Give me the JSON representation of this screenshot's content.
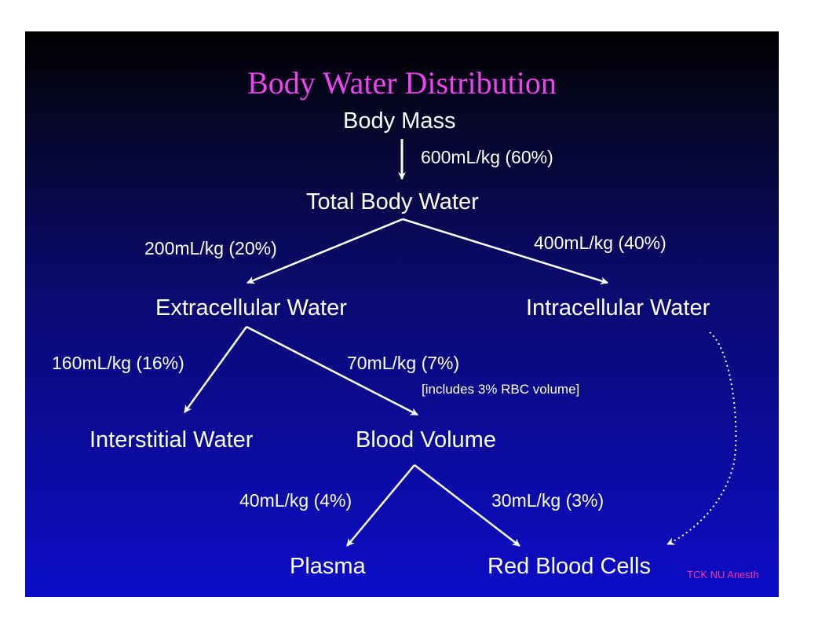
{
  "title": "Body Water Distribution",
  "nodes": {
    "body_mass": "Body Mass",
    "total_body_water": "Total Body Water",
    "extracellular_water": "Extracellular Water",
    "intracellular_water": "Intracellular Water",
    "interstitial_water": "Interstitial Water",
    "blood_volume": "Blood Volume",
    "plasma": "Plasma",
    "red_blood_cells": "Red Blood Cells"
  },
  "edges": {
    "body_to_tbw": "600mL/kg (60%)",
    "tbw_to_ecw": "200mL/kg (20%)",
    "tbw_to_icw": "400mL/kg (40%)",
    "ecw_to_interstitial": "160mL/kg (16%)",
    "ecw_to_blood": "70mL/kg (7%)",
    "ecw_to_blood_note": "[includes 3% RBC volume]",
    "blood_to_plasma": "40mL/kg (4%)",
    "blood_to_rbc": "30mL/kg (3%)"
  },
  "credit": "TCK NU Anesth",
  "colors": {
    "title": "#ee44ee",
    "credit": "#ff3399",
    "text": "#ffffff",
    "background_top": "#000000",
    "background_bottom": "#0c0cc8"
  }
}
